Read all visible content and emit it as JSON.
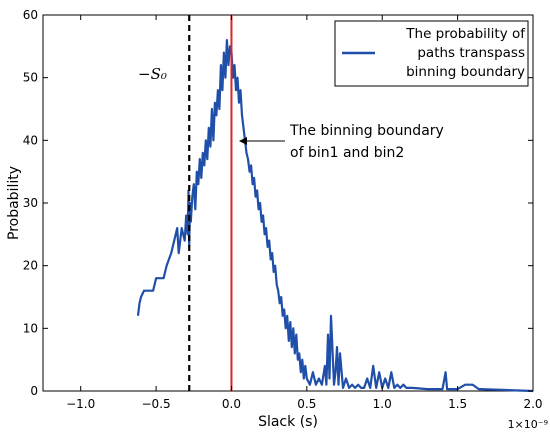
{
  "chart_data": {
    "type": "line",
    "xlabel": "Slack (s)",
    "ylabel": "Probability",
    "x_multiplier": "1×10⁻⁹",
    "xlim": [
      -1.25,
      2.0
    ],
    "ylim": [
      0,
      60
    ],
    "xticks": [
      -1.0,
      -0.5,
      0.0,
      0.5,
      1.0,
      1.5,
      2.0
    ],
    "xtick_labels": [
      "−1.0",
      "−0.5",
      "0.0",
      "0.5",
      "1.0",
      "1.5",
      "2.0"
    ],
    "yticks": [
      0,
      10,
      20,
      30,
      40,
      50,
      60
    ],
    "ytick_labels": [
      "0",
      "10",
      "20",
      "30",
      "40",
      "50",
      "60"
    ],
    "grid": false,
    "legend_position": "top-right",
    "legend_lines": [
      "The probability of",
      "paths transpass",
      "binning boundary"
    ],
    "series": [
      {
        "name": "The probability of paths transpass binning boundary",
        "color": "#1f4fa8",
        "x": [
          -0.62,
          -0.61,
          -0.6,
          -0.58,
          -0.56,
          -0.52,
          -0.5,
          -0.45,
          -0.43,
          -0.4,
          -0.38,
          -0.36,
          -0.35,
          -0.33,
          -0.31,
          -0.3,
          -0.29,
          -0.285,
          -0.28,
          -0.275,
          -0.27,
          -0.26,
          -0.25,
          -0.24,
          -0.23,
          -0.22,
          -0.21,
          -0.2,
          -0.19,
          -0.18,
          -0.17,
          -0.16,
          -0.15,
          -0.14,
          -0.13,
          -0.12,
          -0.11,
          -0.1,
          -0.09,
          -0.08,
          -0.07,
          -0.06,
          -0.05,
          -0.04,
          -0.03,
          -0.02,
          -0.01,
          0.0,
          0.01,
          0.02,
          0.03,
          0.04,
          0.05,
          0.06,
          0.07,
          0.08,
          0.09,
          0.1,
          0.11,
          0.12,
          0.13,
          0.14,
          0.15,
          0.16,
          0.17,
          0.18,
          0.19,
          0.2,
          0.21,
          0.22,
          0.23,
          0.24,
          0.25,
          0.26,
          0.27,
          0.28,
          0.29,
          0.3,
          0.31,
          0.32,
          0.33,
          0.34,
          0.35,
          0.36,
          0.37,
          0.38,
          0.39,
          0.4,
          0.41,
          0.42,
          0.43,
          0.44,
          0.45,
          0.46,
          0.47,
          0.48,
          0.49,
          0.5,
          0.52,
          0.54,
          0.56,
          0.58,
          0.6,
          0.62,
          0.63,
          0.64,
          0.65,
          0.66,
          0.68,
          0.69,
          0.7,
          0.71,
          0.72,
          0.74,
          0.76,
          0.78,
          0.8,
          0.82,
          0.84,
          0.86,
          0.88,
          0.9,
          0.92,
          0.94,
          0.96,
          0.98,
          1.0,
          1.02,
          1.04,
          1.06,
          1.08,
          1.1,
          1.12,
          1.14,
          1.16,
          1.2,
          1.3,
          1.4,
          1.42,
          1.43,
          1.44,
          1.45,
          1.5,
          1.55,
          1.6,
          1.64,
          1.65,
          2.0
        ],
        "y": [
          12,
          14,
          15,
          16,
          16,
          16,
          18,
          18,
          20,
          22,
          24,
          26,
          22,
          26,
          24,
          28,
          25,
          32,
          23,
          30,
          27,
          31,
          33,
          29,
          35,
          33,
          37,
          34,
          38,
          36,
          40,
          37,
          42,
          39,
          45,
          40,
          46,
          44,
          48,
          45,
          52,
          48,
          54,
          50,
          56,
          52,
          55,
          54,
          50,
          52,
          48,
          50,
          46,
          48,
          44,
          42,
          40,
          38,
          37,
          35,
          36,
          33,
          34,
          31,
          32,
          29,
          30,
          27,
          28,
          25,
          26,
          23,
          24,
          21,
          22,
          19,
          20,
          17,
          16,
          14,
          15,
          12,
          13,
          10,
          12,
          8,
          11,
          7,
          10,
          6,
          9,
          5,
          6,
          3,
          5,
          2,
          4,
          2,
          1,
          3,
          1,
          2,
          1,
          4,
          1,
          9,
          2,
          12,
          1,
          3,
          7,
          1,
          6,
          0.5,
          2,
          0.5,
          1,
          0.5,
          1,
          0.5,
          0.5,
          2,
          0.5,
          4,
          0.5,
          3,
          0.5,
          2,
          0.5,
          3,
          0.5,
          1,
          0.5,
          1,
          0.5,
          0.5,
          0.3,
          0.3,
          3,
          0.3,
          0.3,
          0.3,
          0.3,
          1,
          1,
          0.3,
          0.3,
          0
        ]
      }
    ],
    "vlines": [
      {
        "x": -0.28,
        "style": "dashed",
        "color": "#000000"
      },
      {
        "x": 0.0,
        "style": "solid",
        "color": "#d62728"
      }
    ],
    "annotations": [
      {
        "text": "−S₀",
        "x": -0.72,
        "y": 52
      },
      {
        "lines": [
          "The binning boundary",
          "of bin1 and bin2"
        ],
        "target_x": 0.0,
        "target_y": 40
      }
    ]
  }
}
